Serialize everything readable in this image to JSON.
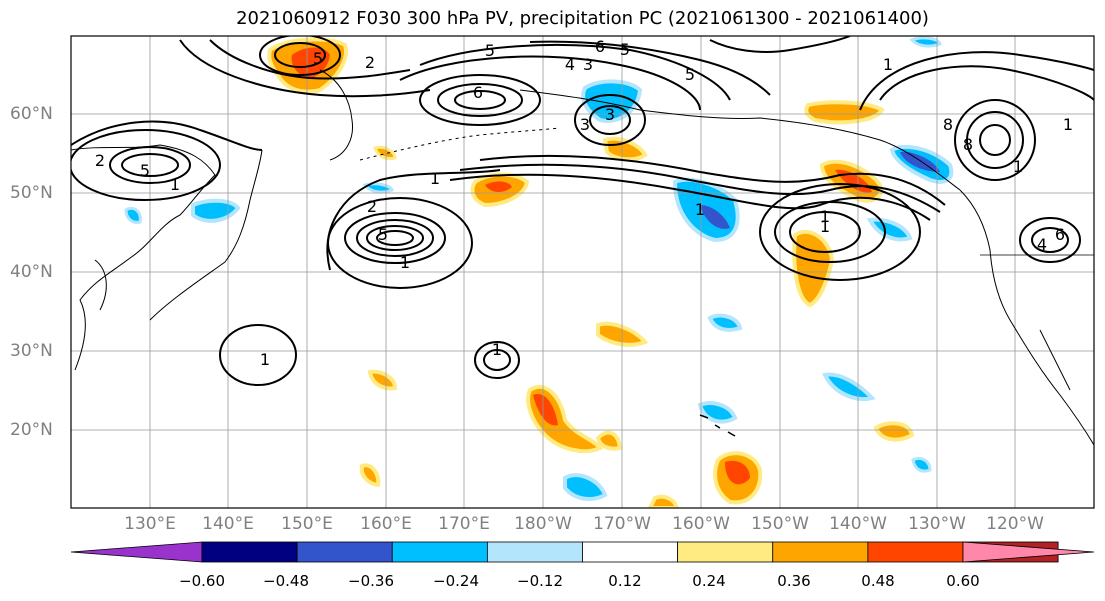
{
  "title": "2021060912 F030 300 hPa PV, precipitation PC (2021061300 - 2021061400)",
  "lat_labels": [
    "60°N",
    "50°N",
    "40°N",
    "30°N",
    "20°N"
  ],
  "lon_labels": [
    "130°E",
    "140°E",
    "150°E",
    "160°E",
    "170°E",
    "180°W",
    "170°W",
    "160°W",
    "150°W",
    "140°W",
    "130°W",
    "120°W"
  ],
  "contour_labels": [
    "5",
    "2",
    "5",
    "1",
    "5",
    "6",
    "3",
    "2",
    "1",
    "5",
    "1",
    "2",
    "1",
    "1",
    "3",
    "4",
    "5",
    "6",
    "3",
    "1",
    "5",
    "1",
    "8",
    "6",
    "1",
    "1",
    "8",
    "4",
    "1",
    "1"
  ],
  "colorbar": {
    "colors": [
      "#9933cc",
      "#000080",
      "#3355cc",
      "#00bfff",
      "#b3e5fc",
      "#ffffff",
      "#ffeb82",
      "#ffa500",
      "#ff4500",
      "#b22222",
      "#ff88aa"
    ],
    "labels": [
      "−0.60",
      "−0.48",
      "−0.36",
      "−0.24",
      "−0.12",
      "0.12",
      "0.24",
      "0.36",
      "0.48",
      "0.60"
    ]
  }
}
